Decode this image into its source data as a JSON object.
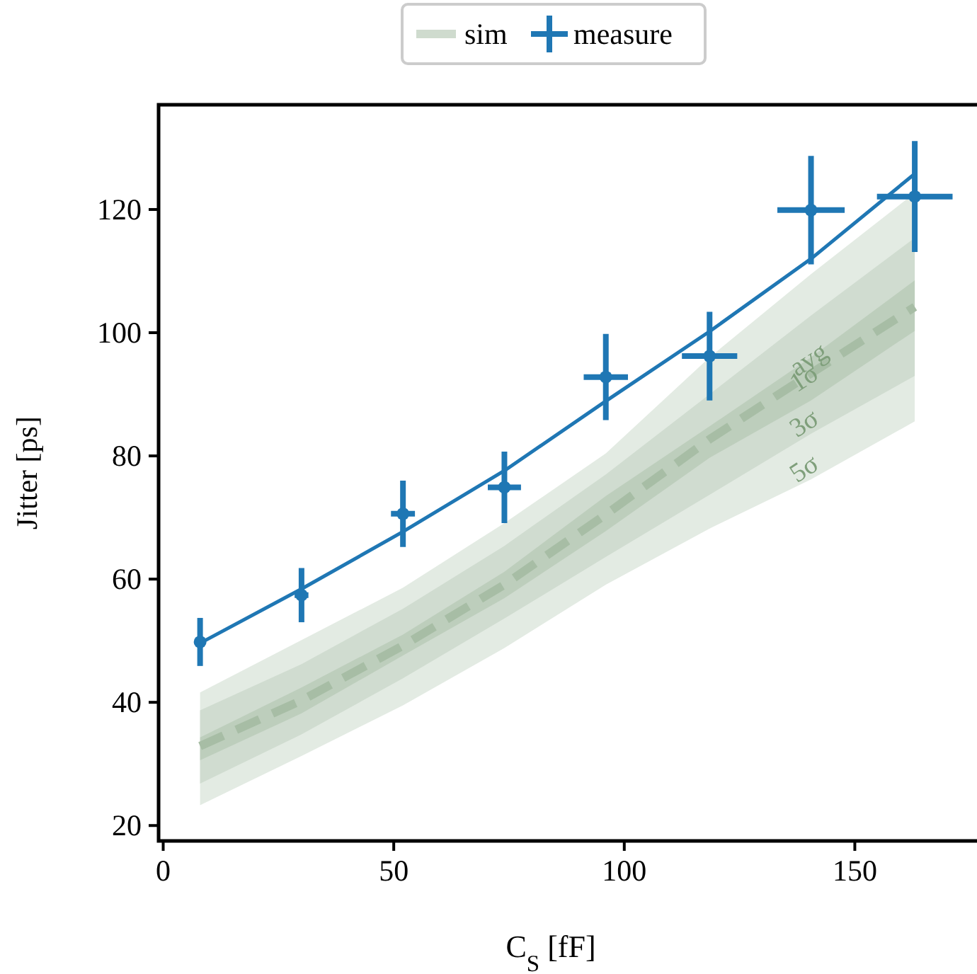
{
  "chart_data": {
    "type": "line",
    "xlabel": "C$_{S}$ [fF]",
    "ylabel": "Jitter [ps]",
    "xlim": [
      -1,
      176.5
    ],
    "ylim": [
      17.5,
      137
    ],
    "xticks": [
      0,
      50,
      100,
      150
    ],
    "yticks": [
      20,
      40,
      60,
      80,
      100,
      120
    ],
    "legend": "top",
    "x": [
      8,
      30,
      52,
      74,
      96,
      118.5,
      140.5,
      163
    ],
    "series": [
      {
        "name": null,
        "color": "#e3ebe3",
        "values": [
          null,
          null,
          null,
          null,
          null,
          null,
          null,
          null
        ],
        "lower": [
          23.3,
          31.3,
          39.5,
          48.8,
          59.1,
          68.2,
          76.2,
          85.6
        ],
        "upper": [
          41.6,
          50.1,
          58.6,
          69.1,
          80.4,
          96,
          109.5,
          122.7
        ]
      },
      {
        "name": null,
        "color": "#d0dcd0",
        "values": [
          null,
          null,
          null,
          null,
          null,
          null,
          null,
          null
        ],
        "lower": [
          26.8,
          34.8,
          43.9,
          53.6,
          63.6,
          73.7,
          83.6,
          93
        ],
        "upper": [
          38.7,
          46.2,
          55.2,
          65.4,
          77,
          90,
          102.8,
          115.4
        ]
      },
      {
        "name": "sim",
        "color": "#a7bda5",
        "line_style": "dashed",
        "values": [
          32.9,
          40.3,
          49.2,
          59.1,
          70.5,
          82.7,
          93.4,
          104.2
        ],
        "lower": [
          30.6,
          38.2,
          47.6,
          56.9,
          67.8,
          79.7,
          89,
          100.3
        ],
        "upper": [
          34.3,
          42.4,
          51,
          61.2,
          73.5,
          84.8,
          96,
          108.5
        ]
      },
      {
        "name": null,
        "color": "#1f77b4",
        "line_style": "solid",
        "values": [
          49.6,
          58.4,
          67.7,
          77.6,
          88.9,
          100.2,
          112,
          125.8
        ]
      },
      {
        "name": "measure",
        "type": "scatter",
        "color": "#1f77b4",
        "marker": "circle",
        "values": [
          49.8,
          57.4,
          70.6,
          74.9,
          92.8,
          96.2,
          119.9,
          122.1
        ],
        "errors": [
          3.9,
          4.4,
          5.4,
          5.8,
          7,
          7.2,
          8.8,
          9
        ],
        "xerrors": [
          0.5,
          1.5,
          2.6,
          3.6,
          4.8,
          6,
          7.3,
          8.2
        ]
      }
    ],
    "annotations": [
      {
        "text": "avg",
        "x": 141,
        "y": 94.5
      },
      {
        "text": "1σ",
        "x": 140,
        "y": 91.5
      },
      "3σ",
      "5σ"
    ]
  }
}
